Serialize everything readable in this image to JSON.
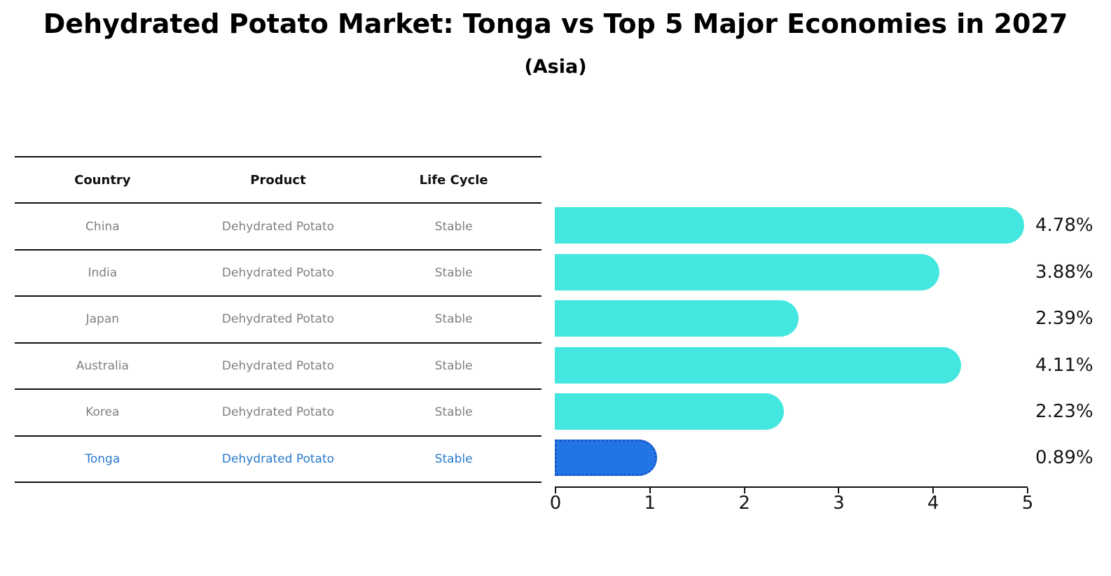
{
  "title": "Dehydrated Potato Market: Tonga vs Top 5 Major Economies in 2027",
  "subtitle": "(Asia)",
  "table": {
    "headers": [
      "Country",
      "Product",
      "Life Cycle"
    ],
    "rows": [
      {
        "country": "China",
        "product": "Dehydrated Potato",
        "life_cycle": "Stable",
        "highlighted": false
      },
      {
        "country": "India",
        "product": "Dehydrated Potato",
        "life_cycle": "Stable",
        "highlighted": false
      },
      {
        "country": "Japan",
        "product": "Dehydrated Potato",
        "life_cycle": "Stable",
        "highlighted": false
      },
      {
        "country": "Australia",
        "product": "Dehydrated Potato",
        "life_cycle": "Stable",
        "highlighted": false
      },
      {
        "country": "Korea",
        "product": "Dehydrated Potato",
        "life_cycle": "Stable",
        "highlighted": false
      },
      {
        "country": "Tonga",
        "product": "Dehydrated Potato",
        "life_cycle": "Stable",
        "highlighted": true
      }
    ]
  },
  "chart_data": {
    "type": "bar",
    "orientation": "horizontal",
    "title": "Dehydrated Potato Market: Tonga vs Top 5 Major Economies in 2027",
    "subtitle": "(Asia)",
    "categories": [
      "China",
      "India",
      "Japan",
      "Australia",
      "Korea",
      "Tonga"
    ],
    "values": [
      4.78,
      3.88,
      2.39,
      4.11,
      2.23,
      0.89
    ],
    "value_labels": [
      "4.78%",
      "3.88%",
      "2.39%",
      "4.11%",
      "2.23%",
      "0.89%"
    ],
    "xlim": [
      0,
      5
    ],
    "x_ticks": [
      "0",
      "1",
      "2",
      "3",
      "4",
      "5"
    ],
    "grid": false,
    "legend": false,
    "bar_color": "#44e7e0",
    "highlight_index": 5,
    "highlight_color": "#2375e6",
    "highlight_border_color": "#1a56c0",
    "highlight_text_color": "#2878cd"
  }
}
